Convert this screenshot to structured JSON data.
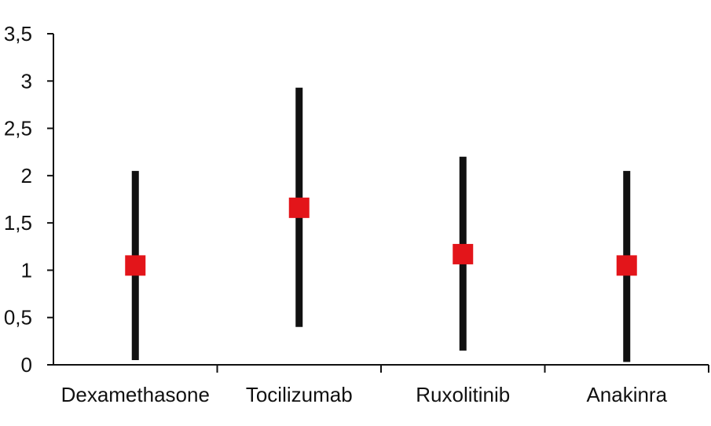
{
  "chart_data": {
    "type": "scatter",
    "title": "",
    "xlabel": "",
    "ylabel": "",
    "categories": [
      "Dexamethasone",
      "Tocilizumab",
      "Ruxolitinib",
      "Anakinra"
    ],
    "series": [
      {
        "values": [
          1.05,
          1.66,
          1.17,
          1.05
        ],
        "lower": [
          0.05,
          0.4,
          0.15,
          0.03
        ],
        "upper": [
          2.05,
          2.93,
          2.2,
          2.05
        ]
      }
    ],
    "ylim": [
      0,
      3.5
    ],
    "yticks": [
      0,
      0.5,
      1,
      1.5,
      2,
      2.5,
      3,
      3.5
    ],
    "ytick_labels": [
      "0",
      "0,5",
      "1",
      "1,5",
      "2",
      "2,5",
      "3",
      "3,5"
    ],
    "grid": false,
    "legend": "none",
    "colors": {
      "point": "#e3151a",
      "interval": "#111111",
      "axis": "#111111"
    }
  }
}
